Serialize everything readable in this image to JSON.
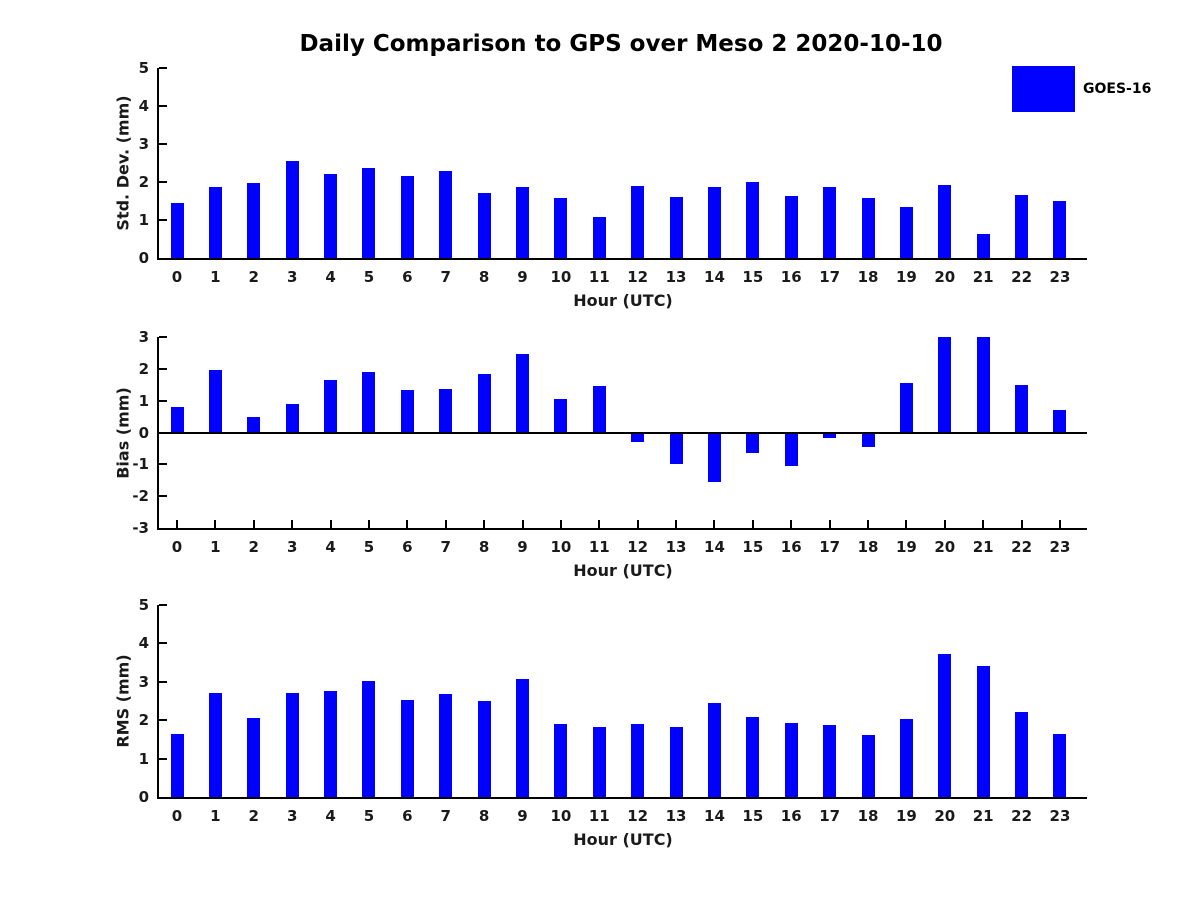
{
  "page": {
    "title": "Daily Comparison to GPS over Meso 2 2020-10-10",
    "background": "#ffffff"
  },
  "legend": {
    "label": "GOES-16",
    "swatch_color": "#0000FF",
    "position": "top-right"
  },
  "colors": {
    "bar": "#0000FF",
    "axis": "#000000",
    "text": "#1a1a1a"
  },
  "chart_data": [
    {
      "type": "bar",
      "series_name": "GOES-16",
      "xlabel": "Hour (UTC)",
      "ylabel": "Std. Dev. (mm)",
      "categories": [
        "0",
        "1",
        "2",
        "3",
        "4",
        "5",
        "6",
        "7",
        "8",
        "9",
        "10",
        "11",
        "12",
        "13",
        "14",
        "15",
        "16",
        "17",
        "18",
        "19",
        "20",
        "21",
        "22",
        "23"
      ],
      "values": [
        1.45,
        1.88,
        1.98,
        2.55,
        2.2,
        2.38,
        2.15,
        2.28,
        1.7,
        1.88,
        1.57,
        1.07,
        1.9,
        1.6,
        1.88,
        2.0,
        1.62,
        1.88,
        1.57,
        1.35,
        1.93,
        0.63,
        1.65,
        1.5
      ],
      "ylim": [
        0,
        5
      ],
      "yticks": [
        0,
        1,
        2,
        3,
        4,
        5
      ],
      "grid": false,
      "tick_direction": "in"
    },
    {
      "type": "bar",
      "series_name": "GOES-16",
      "xlabel": "Hour (UTC)",
      "ylabel": "Bias (mm)",
      "categories": [
        "0",
        "1",
        "2",
        "3",
        "4",
        "5",
        "6",
        "7",
        "8",
        "9",
        "10",
        "11",
        "12",
        "13",
        "14",
        "15",
        "16",
        "17",
        "18",
        "19",
        "20",
        "21",
        "22",
        "23"
      ],
      "values": [
        0.8,
        1.95,
        0.5,
        0.88,
        1.65,
        1.9,
        1.35,
        1.38,
        1.85,
        2.48,
        1.05,
        1.45,
        -0.3,
        -1.0,
        -1.57,
        -0.63,
        -1.05,
        -0.18,
        -0.45,
        1.55,
        3.0,
        3.0,
        1.5,
        0.7
      ],
      "ylim": [
        -3,
        3
      ],
      "yticks": [
        -3,
        -2,
        -1,
        0,
        1,
        2,
        3
      ],
      "zero_line": true,
      "grid": false,
      "tick_direction": "in"
    },
    {
      "type": "bar",
      "series_name": "GOES-16",
      "xlabel": "Hour (UTC)",
      "ylabel": "RMS (mm)",
      "categories": [
        "0",
        "1",
        "2",
        "3",
        "4",
        "5",
        "6",
        "7",
        "8",
        "9",
        "10",
        "11",
        "12",
        "13",
        "14",
        "15",
        "16",
        "17",
        "18",
        "19",
        "20",
        "21",
        "22",
        "23"
      ],
      "values": [
        1.65,
        2.7,
        2.05,
        2.7,
        2.75,
        3.03,
        2.52,
        2.67,
        2.51,
        3.08,
        1.9,
        1.82,
        1.9,
        1.83,
        2.46,
        2.08,
        1.92,
        1.88,
        1.61,
        2.03,
        3.73,
        3.41,
        2.21,
        1.64
      ],
      "ylim": [
        0,
        5
      ],
      "yticks": [
        0,
        1,
        2,
        3,
        4,
        5
      ],
      "grid": false,
      "tick_direction": "in"
    }
  ]
}
